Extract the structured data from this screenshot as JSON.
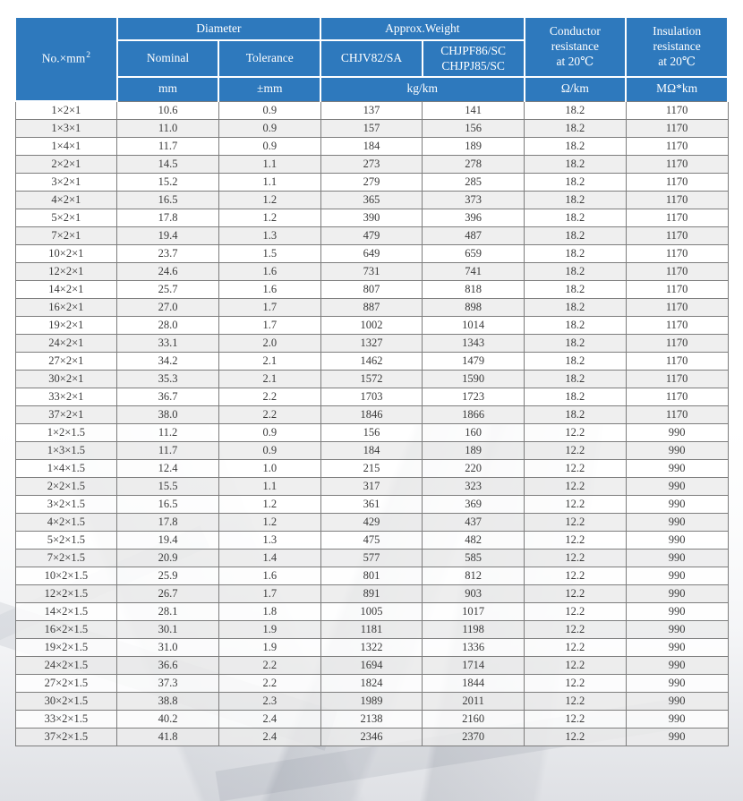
{
  "colors": {
    "header_blue": "#2e79bd",
    "border_gray": "#7d7d7d",
    "row_alt": "#ececec",
    "text_dark": "#3a3a3a"
  },
  "table": {
    "header": {
      "no_label": "No.×mm",
      "no_sup": "2",
      "diameter": "Diameter",
      "nominal": "Nominal",
      "tolerance": "Tolerance",
      "weight": "Approx.Weight",
      "chjv": "CHJV82/SA",
      "chjpf_line1": "CHJPF86/SC",
      "chjpf_line2": "CHJPJ85/SC",
      "conductor_lines": [
        "Conductor",
        "resistance",
        "at 20℃"
      ],
      "insulation_lines": [
        "Insulation",
        "resistance",
        "at 20℃"
      ],
      "units": {
        "mm": "mm",
        "tolerance": "±mm",
        "weight": "kg/km",
        "conductor": "Ω/km",
        "insulation": "MΩ*km"
      }
    },
    "rows": [
      [
        "1×2×1",
        "10.6",
        "0.9",
        "137",
        "141",
        "18.2",
        "1170"
      ],
      [
        "1×3×1",
        "11.0",
        "0.9",
        "157",
        "156",
        "18.2",
        "1170"
      ],
      [
        "1×4×1",
        "11.7",
        "0.9",
        "184",
        "189",
        "18.2",
        "1170"
      ],
      [
        "2×2×1",
        "14.5",
        "1.1",
        "273",
        "278",
        "18.2",
        "1170"
      ],
      [
        "3×2×1",
        "15.2",
        "1.1",
        "279",
        "285",
        "18.2",
        "1170"
      ],
      [
        "4×2×1",
        "16.5",
        "1.2",
        "365",
        "373",
        "18.2",
        "1170"
      ],
      [
        "5×2×1",
        "17.8",
        "1.2",
        "390",
        "396",
        "18.2",
        "1170"
      ],
      [
        "7×2×1",
        "19.4",
        "1.3",
        "479",
        "487",
        "18.2",
        "1170"
      ],
      [
        "10×2×1",
        "23.7",
        "1.5",
        "649",
        "659",
        "18.2",
        "1170"
      ],
      [
        "12×2×1",
        "24.6",
        "1.6",
        "731",
        "741",
        "18.2",
        "1170"
      ],
      [
        "14×2×1",
        "25.7",
        "1.6",
        "807",
        "818",
        "18.2",
        "1170"
      ],
      [
        "16×2×1",
        "27.0",
        "1.7",
        "887",
        "898",
        "18.2",
        "1170"
      ],
      [
        "19×2×1",
        "28.0",
        "1.7",
        "1002",
        "1014",
        "18.2",
        "1170"
      ],
      [
        "24×2×1",
        "33.1",
        "2.0",
        "1327",
        "1343",
        "18.2",
        "1170"
      ],
      [
        "27×2×1",
        "34.2",
        "2.1",
        "1462",
        "1479",
        "18.2",
        "1170"
      ],
      [
        "30×2×1",
        "35.3",
        "2.1",
        "1572",
        "1590",
        "18.2",
        "1170"
      ],
      [
        "33×2×1",
        "36.7",
        "2.2",
        "1703",
        "1723",
        "18.2",
        "1170"
      ],
      [
        "37×2×1",
        "38.0",
        "2.2",
        "1846",
        "1866",
        "18.2",
        "1170"
      ],
      [
        "1×2×1.5",
        "11.2",
        "0.9",
        "156",
        "160",
        "12.2",
        "990"
      ],
      [
        "1×3×1.5",
        "11.7",
        "0.9",
        "184",
        "189",
        "12.2",
        "990"
      ],
      [
        "1×4×1.5",
        "12.4",
        "1.0",
        "215",
        "220",
        "12.2",
        "990"
      ],
      [
        "2×2×1.5",
        "15.5",
        "1.1",
        "317",
        "323",
        "12.2",
        "990"
      ],
      [
        "3×2×1.5",
        "16.5",
        "1.2",
        "361",
        "369",
        "12.2",
        "990"
      ],
      [
        "4×2×1.5",
        "17.8",
        "1.2",
        "429",
        "437",
        "12.2",
        "990"
      ],
      [
        "5×2×1.5",
        "19.4",
        "1.3",
        "475",
        "482",
        "12.2",
        "990"
      ],
      [
        "7×2×1.5",
        "20.9",
        "1.4",
        "577",
        "585",
        "12.2",
        "990"
      ],
      [
        "10×2×1.5",
        "25.9",
        "1.6",
        "801",
        "812",
        "12.2",
        "990"
      ],
      [
        "12×2×1.5",
        "26.7",
        "1.7",
        "891",
        "903",
        "12.2",
        "990"
      ],
      [
        "14×2×1.5",
        "28.1",
        "1.8",
        "1005",
        "1017",
        "12.2",
        "990"
      ],
      [
        "16×2×1.5",
        "30.1",
        "1.9",
        "1181",
        "1198",
        "12.2",
        "990"
      ],
      [
        "19×2×1.5",
        "31.0",
        "1.9",
        "1322",
        "1336",
        "12.2",
        "990"
      ],
      [
        "24×2×1.5",
        "36.6",
        "2.2",
        "1694",
        "1714",
        "12.2",
        "990"
      ],
      [
        "27×2×1.5",
        "37.3",
        "2.2",
        "1824",
        "1844",
        "12.2",
        "990"
      ],
      [
        "30×2×1.5",
        "38.8",
        "2.3",
        "1989",
        "2011",
        "12.2",
        "990"
      ],
      [
        "33×2×1.5",
        "40.2",
        "2.4",
        "2138",
        "2160",
        "12.2",
        "990"
      ],
      [
        "37×2×1.5",
        "41.8",
        "2.4",
        "2346",
        "2370",
        "12.2",
        "990"
      ]
    ]
  }
}
